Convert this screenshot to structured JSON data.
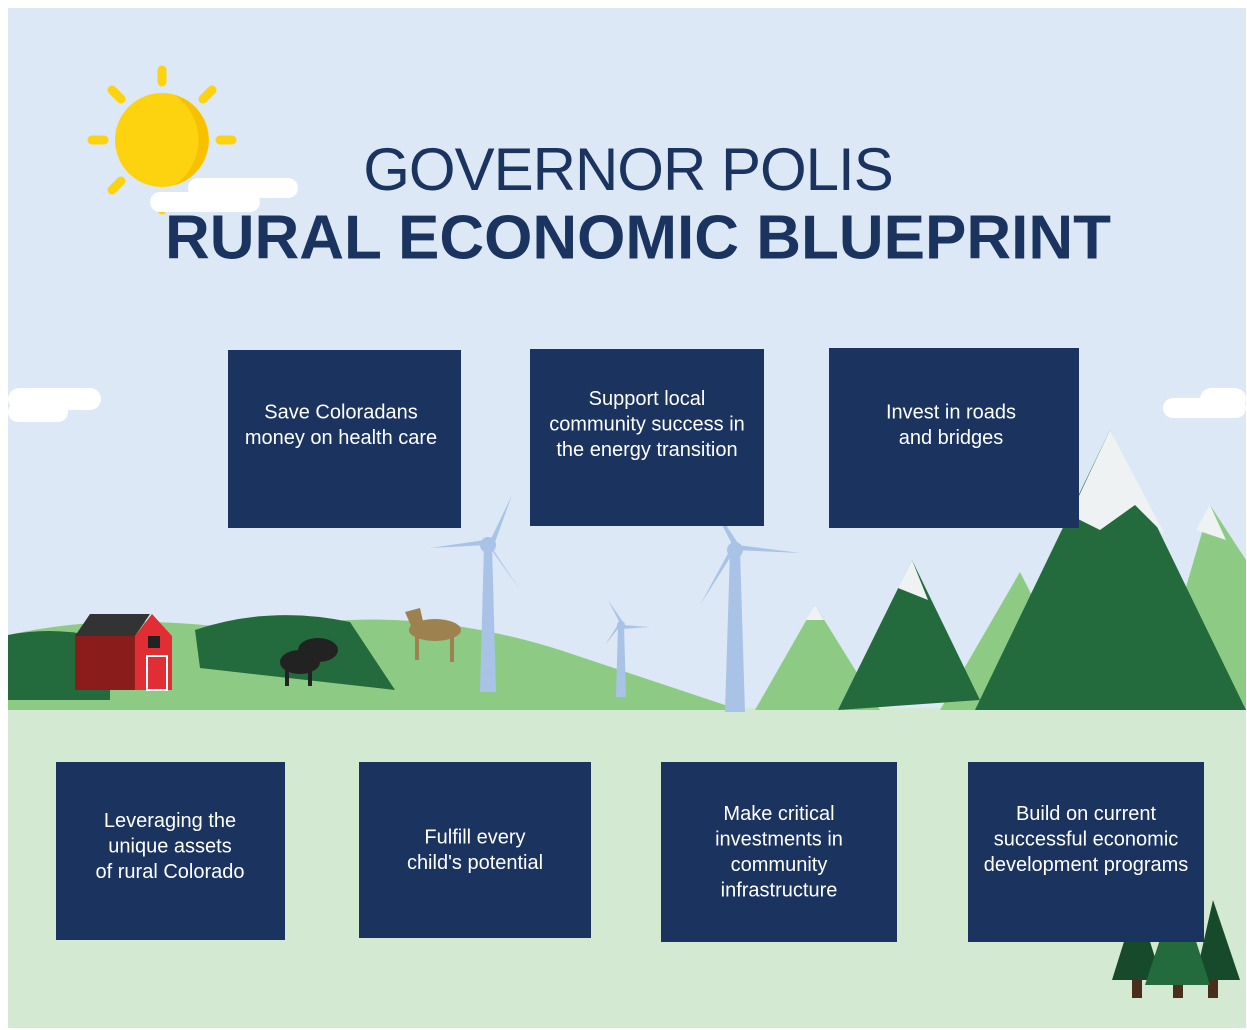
{
  "header": {
    "title": "GOVERNOR POLIS",
    "subtitle": "RURAL ECONOMIC BLUEPRINT"
  },
  "boxes": [
    {
      "lines": [
        "Save Coloradans",
        "money on health care"
      ]
    },
    {
      "lines": [
        "Support local",
        "community success in",
        "the energy transition"
      ]
    },
    {
      "lines": [
        "Invest in roads",
        "and bridges"
      ]
    },
    {
      "lines": [
        "Leveraging the",
        "unique assets",
        "of rural Colorado"
      ]
    },
    {
      "lines": [
        "Fulfill every",
        "child's potential"
      ]
    },
    {
      "lines": [
        "Make critical",
        "investments in",
        "community",
        "infrastructure"
      ]
    },
    {
      "lines": [
        "Build on current",
        "successful economic",
        "development programs"
      ]
    }
  ]
}
